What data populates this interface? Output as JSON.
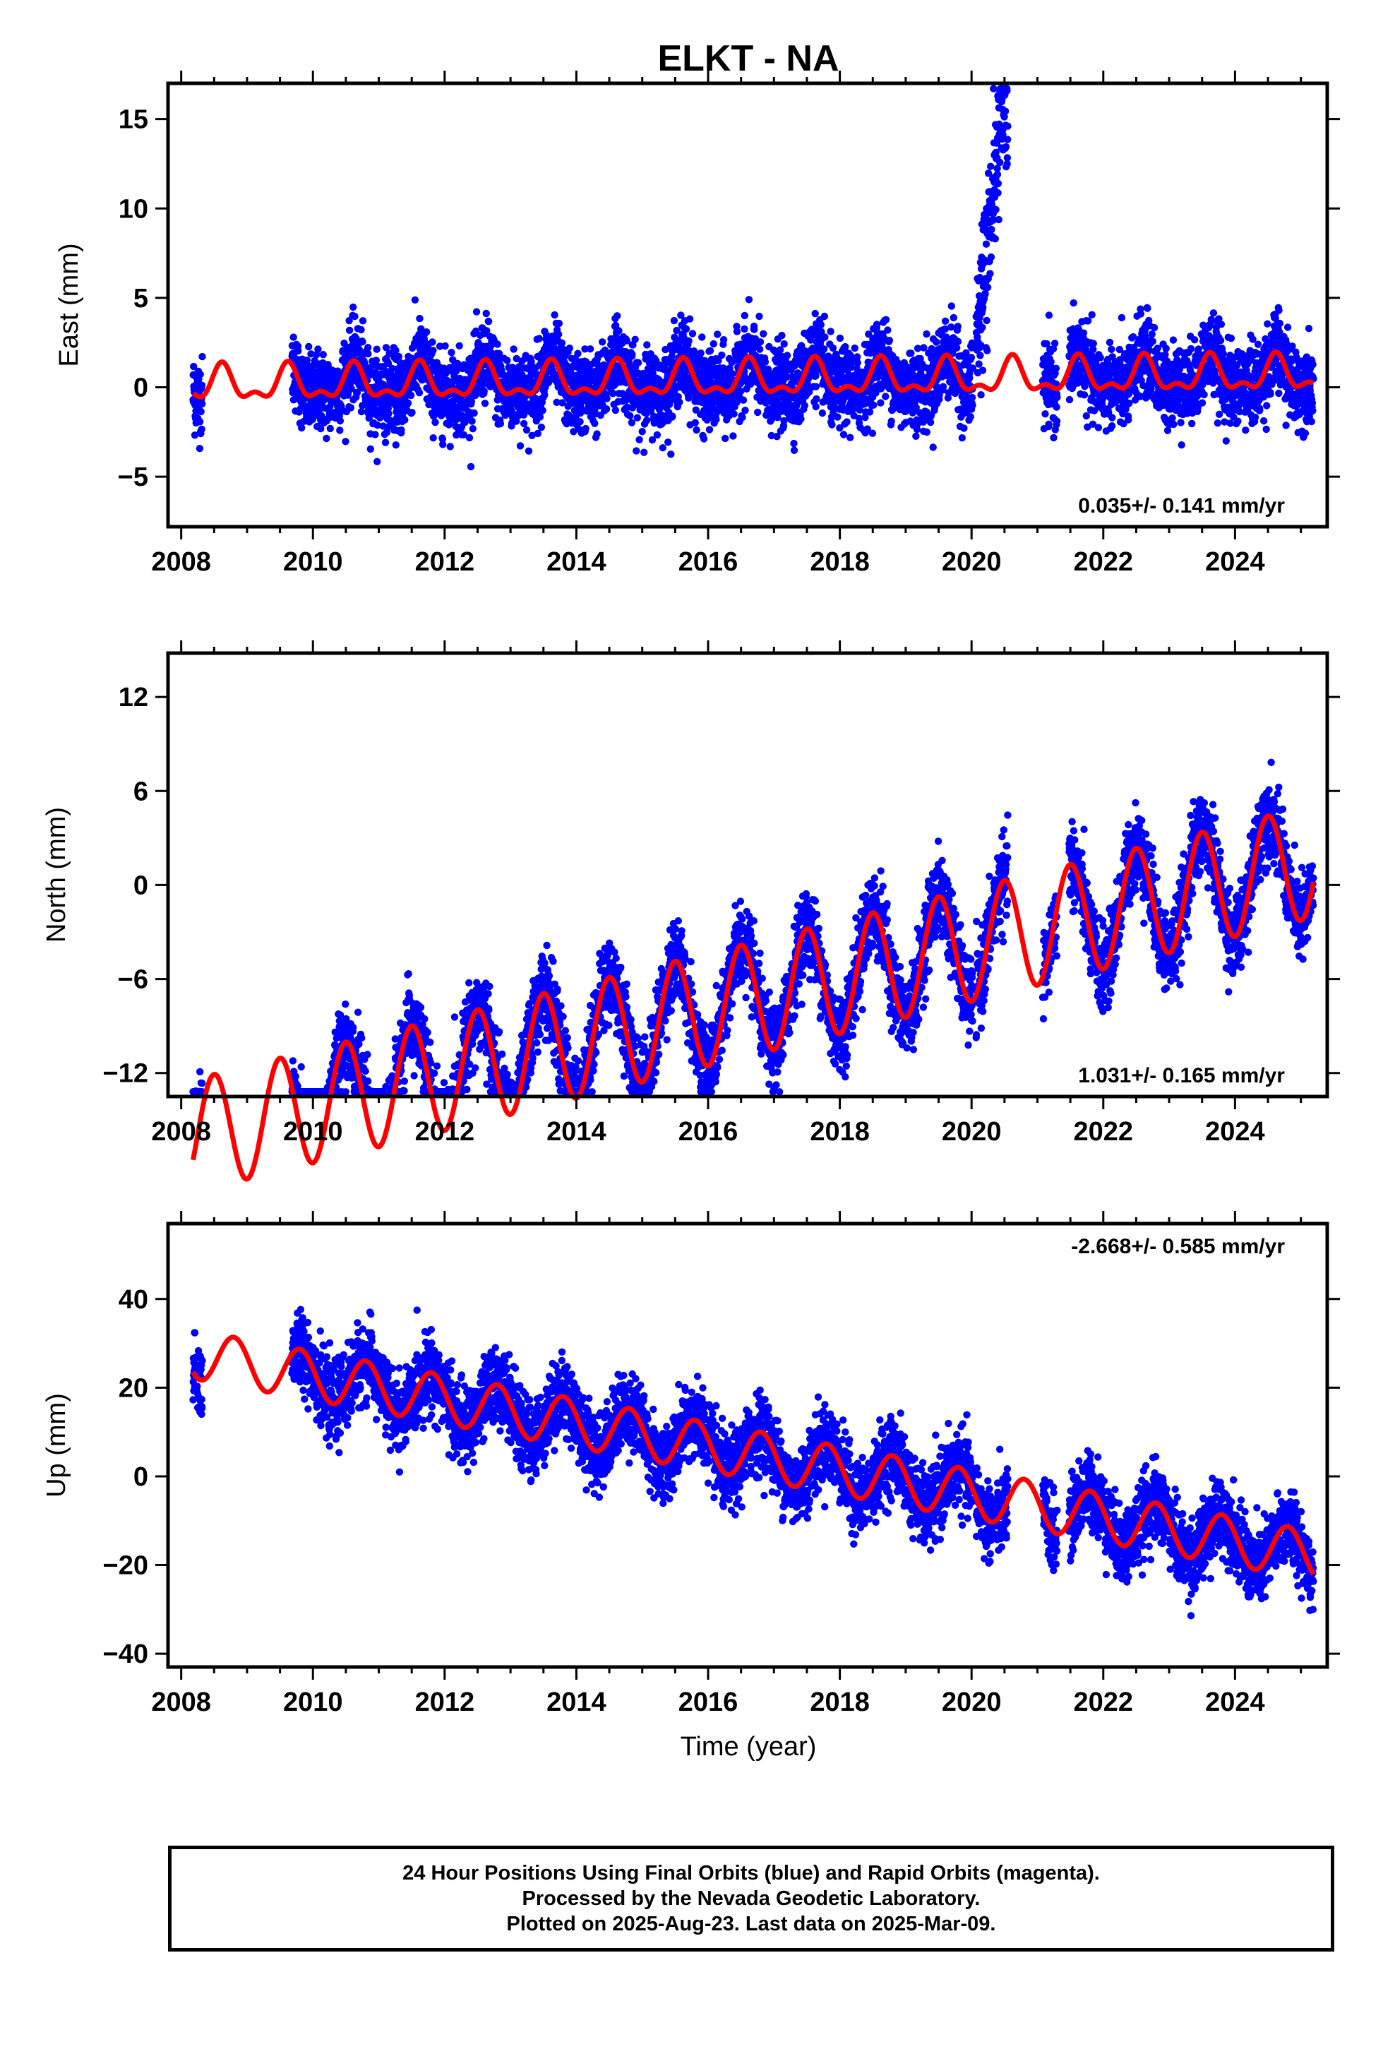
{
  "title": "ELKT - NA",
  "x_axis_label": "Time (year)",
  "footer": {
    "line1": "24 Hour Positions Using Final Orbits (blue) and Rapid Orbits (magenta).",
    "line2": "Processed by the Nevada Geodetic Laboratory.",
    "line3": "Plotted on 2025-Aug-23. Last data on 2025-Mar-09."
  },
  "colors": {
    "observations": "#0000ff",
    "model": "#ff0000",
    "frame": "#000000"
  },
  "chart_data": [
    {
      "type": "scatter",
      "component": "east",
      "ylabel": "East (mm)",
      "rate_text": "0.035+/- 0.141 mm/yr",
      "rate_position": "bottom-right",
      "xlim": [
        2007.8,
        2025.4
      ],
      "ylim": [
        -7.8,
        17.0
      ],
      "x_ticks": [
        2008,
        2010,
        2012,
        2014,
        2016,
        2018,
        2020,
        2022,
        2024
      ],
      "x_tick_labels": [
        "2008",
        "2010",
        "2012",
        "2014",
        "2016",
        "2018",
        "2020",
        "2022",
        "2024"
      ],
      "y_ticks": [
        -5,
        0,
        5,
        10,
        15
      ],
      "y_tick_labels": [
        "−5",
        "0",
        "5",
        "10",
        "15"
      ],
      "grid": false,
      "model": {
        "rate": 0.035,
        "offset": 0.1,
        "annual_amp": 0.85,
        "annual_phase_year": 0.62,
        "semiannual_amp": 0.45,
        "semiannual_phase_year": 0.12
      },
      "data_segments": [
        [
          2008.18,
          2008.32
        ],
        [
          2009.68,
          2020.02
        ],
        [
          2020.07,
          2020.55
        ],
        [
          2021.08,
          2021.3
        ],
        [
          2021.48,
          2025.19
        ]
      ],
      "scatter_sigma": 1.1,
      "transient": {
        "start": 2020.0,
        "peak": 2020.45,
        "end": 2020.55,
        "amplitude": 15.0
      }
    },
    {
      "type": "scatter",
      "component": "north",
      "ylabel": "North (mm)",
      "rate_text": "1.031+/- 0.165 mm/yr",
      "rate_position": "bottom-right",
      "xlim": [
        2007.8,
        2025.4
      ],
      "ylim": [
        -13.5,
        14.8
      ],
      "x_ticks": [
        2008,
        2010,
        2012,
        2014,
        2016,
        2018,
        2020,
        2022,
        2024
      ],
      "x_tick_labels": [
        "2008",
        "2010",
        "2012",
        "2014",
        "2016",
        "2018",
        "2020",
        "2022",
        "2024"
      ],
      "y_ticks": [
        -12,
        -6,
        0,
        6,
        12
      ],
      "y_tick_labels": [
        "−12",
        "−6",
        "0",
        "6",
        "12"
      ],
      "grid": false,
      "model": {
        "rate": 1.031,
        "offset": -16.2,
        "annual_amp": 3.6,
        "annual_phase_year": 0.5,
        "semiannual_amp": 0.0,
        "semiannual_phase_year": 0.0
      },
      "data_segments": [
        [
          2008.18,
          2008.32
        ],
        [
          2009.68,
          2020.02
        ],
        [
          2020.07,
          2020.55
        ],
        [
          2021.08,
          2021.3
        ],
        [
          2021.48,
          2025.19
        ]
      ],
      "scatter_sigma": 1.3
    },
    {
      "type": "scatter",
      "component": "up",
      "ylabel": "Up (mm)",
      "rate_text": "-2.668+/- 0.585 mm/yr",
      "rate_position": "top-right",
      "xlim": [
        2007.8,
        2025.4
      ],
      "ylim": [
        -43,
        57
      ],
      "x_ticks": [
        2008,
        2010,
        2012,
        2014,
        2016,
        2018,
        2020,
        2022,
        2024
      ],
      "x_tick_labels": [
        "2008",
        "2010",
        "2012",
        "2014",
        "2016",
        "2018",
        "2020",
        "2022",
        "2024"
      ],
      "y_ticks": [
        -40,
        -20,
        0,
        20,
        40
      ],
      "y_tick_labels": [
        "−40",
        "−20",
        "0",
        "20",
        "40"
      ],
      "grid": false,
      "model": {
        "rate": -2.668,
        "offset": 28.0,
        "annual_amp": 5.5,
        "annual_phase_year": 0.8,
        "semiannual_amp": 0.0,
        "semiannual_phase_year": 0.0
      },
      "data_segments": [
        [
          2008.18,
          2008.32
        ],
        [
          2009.68,
          2020.02
        ],
        [
          2020.07,
          2020.55
        ],
        [
          2021.08,
          2021.3
        ],
        [
          2021.48,
          2025.19
        ]
      ],
      "scatter_sigma": 4.2
    }
  ]
}
